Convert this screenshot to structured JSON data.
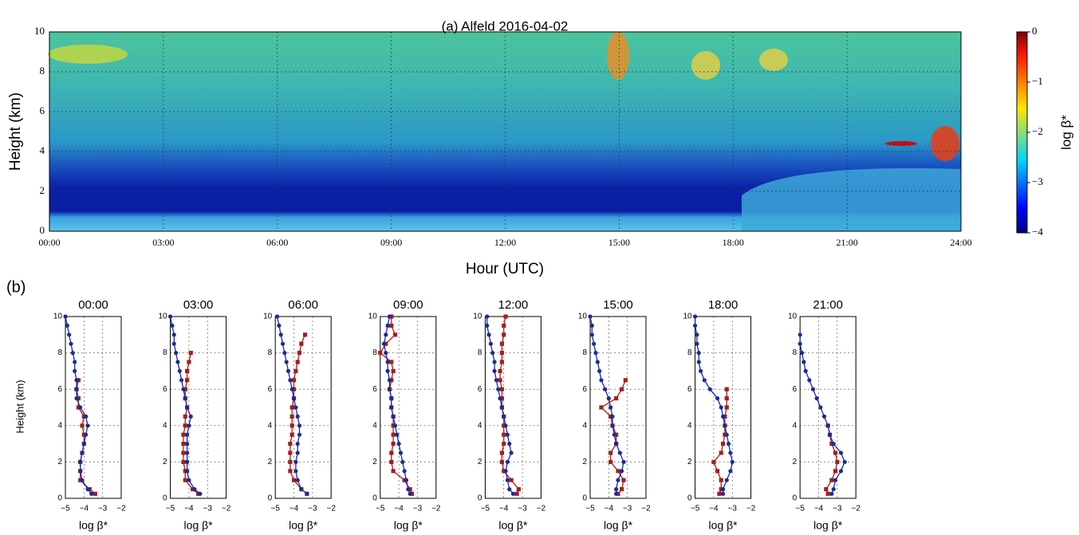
{
  "chart_data": [
    {
      "type": "heatmap",
      "title": "(a) Alfeld 2016-04-02",
      "xlabel": "Hour (UTC)",
      "ylabel": "Height (km)",
      "xlim": [
        0,
        24
      ],
      "xticks": [
        {
          "value": 0,
          "label": "00:00"
        },
        {
          "value": 3,
          "label": "03:00"
        },
        {
          "value": 6,
          "label": "06:00"
        },
        {
          "value": 9,
          "label": "09:00"
        },
        {
          "value": 12,
          "label": "12:00"
        },
        {
          "value": 15,
          "label": "15:00"
        },
        {
          "value": 18,
          "label": "18:00"
        },
        {
          "value": 21,
          "label": "21:00"
        },
        {
          "value": 24,
          "label": "24:00"
        }
      ],
      "ylim": [
        0,
        10
      ],
      "yticks": [
        0,
        2,
        4,
        6,
        8,
        10
      ],
      "grid": true,
      "colorbar_label": "log β*",
      "clim": [
        -4,
        0
      ],
      "cticks": [
        {
          "value": -4,
          "label": "−4"
        },
        {
          "value": -3,
          "label": "−3"
        },
        {
          "value": -2,
          "label": "−2"
        },
        {
          "value": -1,
          "label": "−1"
        },
        0
      ]
    },
    {
      "type": "line",
      "title": "00:00",
      "annotation": "(b)",
      "ylabel": "Height (km)",
      "xlabel": "log β*",
      "heights": [
        0.25,
        0.5,
        1,
        1.5,
        2,
        2.5,
        3,
        3.5,
        4,
        4.5,
        5,
        5.5,
        6,
        6.5,
        7,
        7.5,
        8,
        8.5,
        9,
        9.5,
        10
      ],
      "series": [
        {
          "color": "#1c2a9c",
          "values": [
            -3.6,
            -3.8,
            -4.1,
            -4.2,
            -4.2,
            -4.1,
            -4.0,
            -3.9,
            -3.8,
            -3.9,
            -4.2,
            -4.4,
            -4.4,
            -4.4,
            -4.5,
            -4.5,
            -4.6,
            -4.7,
            -4.8,
            -4.9,
            -5.0
          ]
        },
        {
          "color": "#a3201c",
          "values": [
            -3.4,
            -3.7,
            -4.2,
            -4.2,
            -4.2,
            -4.1,
            -4.0,
            -4.0,
            -4.1,
            -4.0,
            -4.3,
            -4.3,
            -4.4,
            -4.3,
            null,
            null,
            null,
            null,
            null,
            null,
            null
          ]
        }
      ],
      "xlim": [
        -5,
        -2
      ],
      "xticks": [
        {
          "value": -5,
          "label": "−5"
        },
        {
          "value": -4,
          "label": "−4"
        },
        {
          "value": -3,
          "label": "−3"
        },
        {
          "value": -2,
          "label": "−2"
        }
      ],
      "ylim": [
        0,
        10
      ],
      "yticks": [
        0,
        2,
        4,
        6,
        8,
        10
      ],
      "grid": true
    },
    {
      "type": "line",
      "title": "03:00",
      "xlabel": "log β*",
      "heights": [
        0.25,
        0.5,
        1,
        1.5,
        2,
        2.5,
        3,
        3.5,
        4,
        4.5,
        5,
        5.5,
        6,
        6.5,
        7,
        7.5,
        8,
        8.5,
        9,
        9.5,
        10
      ],
      "series": [
        {
          "color": "#1c2a9c",
          "values": [
            -3.4,
            -3.7,
            -4.0,
            -4.1,
            -4.1,
            -4.1,
            -4.1,
            -4.1,
            -4.0,
            -3.9,
            -4.1,
            -4.2,
            -4.3,
            -4.4,
            -4.5,
            -4.6,
            -4.7,
            -4.8,
            -4.8,
            -4.9,
            -5.0
          ]
        },
        {
          "color": "#a3201c",
          "values": [
            -3.5,
            -3.8,
            -4.2,
            -4.2,
            -4.3,
            -4.3,
            -4.3,
            -4.3,
            -4.2,
            -4.2,
            -4.1,
            -4.2,
            -4.2,
            -4.1,
            -4.1,
            -4.0,
            -3.9,
            null,
            null,
            null,
            null
          ]
        }
      ],
      "xlim": [
        -5,
        -2
      ],
      "xticks": [
        {
          "value": -5,
          "label": "−5"
        },
        {
          "value": -4,
          "label": "−4"
        },
        {
          "value": -3,
          "label": "−3"
        },
        {
          "value": -2,
          "label": "−2"
        }
      ],
      "ylim": [
        0,
        10
      ],
      "yticks": [
        0,
        2,
        4,
        6,
        8,
        10
      ],
      "grid": true
    },
    {
      "type": "line",
      "title": "06:00",
      "xlabel": "log β*",
      "heights": [
        0.25,
        0.5,
        1,
        1.5,
        2,
        2.5,
        3,
        3.5,
        4,
        4.5,
        5,
        5.5,
        6,
        6.5,
        7,
        7.5,
        8,
        8.5,
        9,
        9.5,
        10
      ],
      "series": [
        {
          "color": "#1c2a9c",
          "values": [
            -3.3,
            -3.6,
            -3.8,
            -3.9,
            -3.9,
            -3.8,
            -3.8,
            -3.7,
            -3.7,
            -3.8,
            -3.9,
            -4.0,
            -4.1,
            -4.2,
            -4.3,
            -4.4,
            -4.5,
            -4.6,
            -4.7,
            -4.8,
            -4.9
          ]
        },
        {
          "color": "#a3201c",
          "values": [
            -3.3,
            -3.6,
            -4.0,
            -4.2,
            -4.2,
            -4.2,
            -4.2,
            -4.1,
            -4.1,
            -4.1,
            -4.1,
            -4.0,
            -4.0,
            -4.0,
            -3.9,
            -3.8,
            -3.7,
            -3.6,
            -3.4,
            null,
            null
          ]
        }
      ],
      "xlim": [
        -5,
        -2
      ],
      "xticks": [
        {
          "value": -5,
          "label": "−5"
        },
        {
          "value": -4,
          "label": "−4"
        },
        {
          "value": -3,
          "label": "−3"
        },
        {
          "value": -2,
          "label": "−2"
        }
      ],
      "ylim": [
        0,
        10
      ],
      "yticks": [
        0,
        2,
        4,
        6,
        8,
        10
      ],
      "grid": true
    },
    {
      "type": "line",
      "title": "09:00",
      "xlabel": "log β*",
      "heights": [
        0.25,
        0.5,
        1,
        1.5,
        2,
        2.5,
        3,
        3.5,
        4,
        4.5,
        5,
        5.5,
        6,
        6.5,
        7,
        7.5,
        8,
        8.5,
        9,
        9.5,
        10
      ],
      "series": [
        {
          "color": "#1c2a9c",
          "values": [
            -3.4,
            -3.5,
            -3.6,
            -3.7,
            -3.8,
            -3.9,
            -4.0,
            -4.1,
            -4.2,
            -4.3,
            -4.4,
            -4.4,
            -4.5,
            -4.5,
            -4.6,
            -4.6,
            -4.7,
            -4.8,
            -4.7,
            -4.6,
            -4.5
          ]
        },
        {
          "color": "#a3201c",
          "values": [
            -3.3,
            -3.4,
            -3.7,
            -4.3,
            -4.4,
            -4.4,
            -4.3,
            -4.3,
            -4.3,
            -4.3,
            -4.4,
            -4.4,
            -4.5,
            -4.4,
            -4.3,
            -4.4,
            -5.0,
            -4.7,
            -4.2,
            -4.4,
            -4.4
          ]
        }
      ],
      "xlim": [
        -5,
        -2
      ],
      "xticks": [
        {
          "value": -5,
          "label": "−5"
        },
        {
          "value": -4,
          "label": "−4"
        },
        {
          "value": -3,
          "label": "−3"
        },
        {
          "value": -2,
          "label": "−2"
        }
      ],
      "ylim": [
        0,
        10
      ],
      "yticks": [
        0,
        2,
        4,
        6,
        8,
        10
      ],
      "grid": true
    },
    {
      "type": "line",
      "title": "12:00",
      "xlabel": "log β*",
      "heights": [
        0.25,
        0.5,
        1,
        1.5,
        2,
        2.5,
        3,
        3.5,
        4,
        4.5,
        5,
        5.5,
        6,
        6.5,
        7,
        7.5,
        8,
        8.5,
        9,
        9.5,
        10
      ],
      "series": [
        {
          "color": "#1c2a9c",
          "values": [
            -3.5,
            -3.7,
            -3.8,
            -3.9,
            -3.8,
            -3.6,
            -3.7,
            -3.8,
            -3.9,
            -4.0,
            -4.1,
            -4.2,
            -4.3,
            -4.4,
            -4.5,
            -4.5,
            -4.6,
            -4.7,
            -4.8,
            -4.9,
            -4.9
          ]
        },
        {
          "color": "#a3201c",
          "values": [
            -3.3,
            -3.2,
            -3.6,
            -4.0,
            -4.1,
            -4.1,
            -4.0,
            -4.0,
            -4.0,
            -4.0,
            -4.1,
            -4.1,
            -4.1,
            -4.2,
            -4.2,
            -4.1,
            -4.1,
            -4.1,
            -4.0,
            -4.0,
            -3.9
          ]
        }
      ],
      "xlim": [
        -5,
        -2
      ],
      "xticks": [
        {
          "value": -5,
          "label": "−5"
        },
        {
          "value": -4,
          "label": "−4"
        },
        {
          "value": -3,
          "label": "−3"
        },
        {
          "value": -2,
          "label": "−2"
        }
      ],
      "ylim": [
        0,
        10
      ],
      "yticks": [
        0,
        2,
        4,
        6,
        8,
        10
      ],
      "grid": true
    },
    {
      "type": "line",
      "title": "15:00",
      "xlabel": "log β*",
      "heights": [
        0.25,
        0.5,
        1,
        1.5,
        2,
        2.5,
        3,
        3.5,
        4,
        4.5,
        5,
        5.5,
        6,
        6.5,
        7,
        7.5,
        8,
        8.5,
        9,
        9.5,
        10
      ],
      "series": [
        {
          "color": "#1c2a9c",
          "values": [
            -3.6,
            -3.6,
            -3.5,
            -3.3,
            -3.2,
            -3.4,
            -3.6,
            -3.7,
            -3.8,
            -3.8,
            -3.9,
            -4.0,
            -4.2,
            -4.4,
            -4.5,
            -4.6,
            -4.7,
            -4.8,
            -4.9,
            -4.9,
            -5.0
          ]
        },
        {
          "color": "#a3201c",
          "values": [
            -3.5,
            -3.3,
            -3.2,
            -3.5,
            -3.9,
            -3.9,
            -3.6,
            -3.6,
            -3.8,
            -3.9,
            -4.4,
            -3.6,
            -3.3,
            -3.1,
            null,
            null,
            null,
            null,
            null,
            null,
            null
          ]
        }
      ],
      "xlim": [
        -5,
        -2
      ],
      "xticks": [
        {
          "value": -5,
          "label": "−5"
        },
        {
          "value": -4,
          "label": "−4"
        },
        {
          "value": -3,
          "label": "−3"
        },
        {
          "value": -2,
          "label": "−2"
        }
      ],
      "ylim": [
        0,
        10
      ],
      "yticks": [
        0,
        2,
        4,
        6,
        8,
        10
      ],
      "grid": true
    },
    {
      "type": "line",
      "title": "18:00",
      "xlabel": "log β*",
      "heights": [
        0.25,
        0.5,
        1,
        1.5,
        2,
        2.5,
        3,
        3.5,
        4,
        4.5,
        5,
        5.5,
        6,
        6.5,
        7,
        7.5,
        8,
        8.5,
        9,
        9.5,
        10
      ],
      "series": [
        {
          "color": "#1c2a9c",
          "values": [
            -3.5,
            -3.5,
            -3.3,
            -3.1,
            -3.0,
            -3.1,
            -3.2,
            -3.3,
            -3.4,
            -3.5,
            -3.6,
            -3.8,
            -4.2,
            -4.5,
            -4.7,
            -4.8,
            -4.8,
            -4.9,
            -4.9,
            -5.0,
            -5.0
          ]
        },
        {
          "color": "#a3201c",
          "values": [
            -3.7,
            -3.6,
            -3.6,
            -3.8,
            -4.0,
            -3.6,
            -3.5,
            -3.4,
            -3.4,
            -3.4,
            -3.3,
            -3.3,
            -3.3,
            null,
            null,
            null,
            null,
            null,
            null,
            null,
            null
          ]
        }
      ],
      "xlim": [
        -5,
        -2
      ],
      "xticks": [
        {
          "value": -5,
          "label": "−5"
        },
        {
          "value": -4,
          "label": "−4"
        },
        {
          "value": -3,
          "label": "−3"
        },
        {
          "value": -2,
          "label": "−2"
        }
      ],
      "ylim": [
        0,
        10
      ],
      "yticks": [
        0,
        2,
        4,
        6,
        8,
        10
      ],
      "grid": true
    },
    {
      "type": "line",
      "title": "21:00",
      "xlabel": "log β*",
      "heights": [
        0.25,
        0.5,
        1,
        1.5,
        2,
        2.5,
        3,
        3.5,
        4,
        4.5,
        5,
        5.5,
        6,
        6.5,
        7,
        7.5,
        8,
        8.5,
        9,
        9.5,
        10
      ],
      "series": [
        {
          "color": "#1c2a9c",
          "values": [
            -3.3,
            -3.2,
            -3.1,
            -2.8,
            -2.6,
            -2.8,
            -3.2,
            -3.4,
            -3.5,
            -3.7,
            -3.9,
            -4.1,
            -4.3,
            -4.5,
            -4.7,
            -4.8,
            -4.9,
            -5.0,
            -5.0,
            null,
            null
          ]
        },
        {
          "color": "#a3201c",
          "values": [
            -3.5,
            -3.6,
            -3.3,
            -3.1,
            -3.0,
            -3.1,
            -3.3,
            -3.4,
            -3.5,
            null,
            null,
            null,
            null,
            null,
            null,
            null,
            null,
            null,
            null,
            null,
            null
          ]
        }
      ],
      "xlim": [
        -5,
        -2
      ],
      "xticks": [
        {
          "value": -5,
          "label": "−5"
        },
        {
          "value": -4,
          "label": "−4"
        },
        {
          "value": -3,
          "label": "−3"
        },
        {
          "value": -2,
          "label": "−2"
        }
      ],
      "ylim": [
        0,
        10
      ],
      "yticks": [
        0,
        2,
        4,
        6,
        8,
        10
      ],
      "grid": true
    }
  ]
}
